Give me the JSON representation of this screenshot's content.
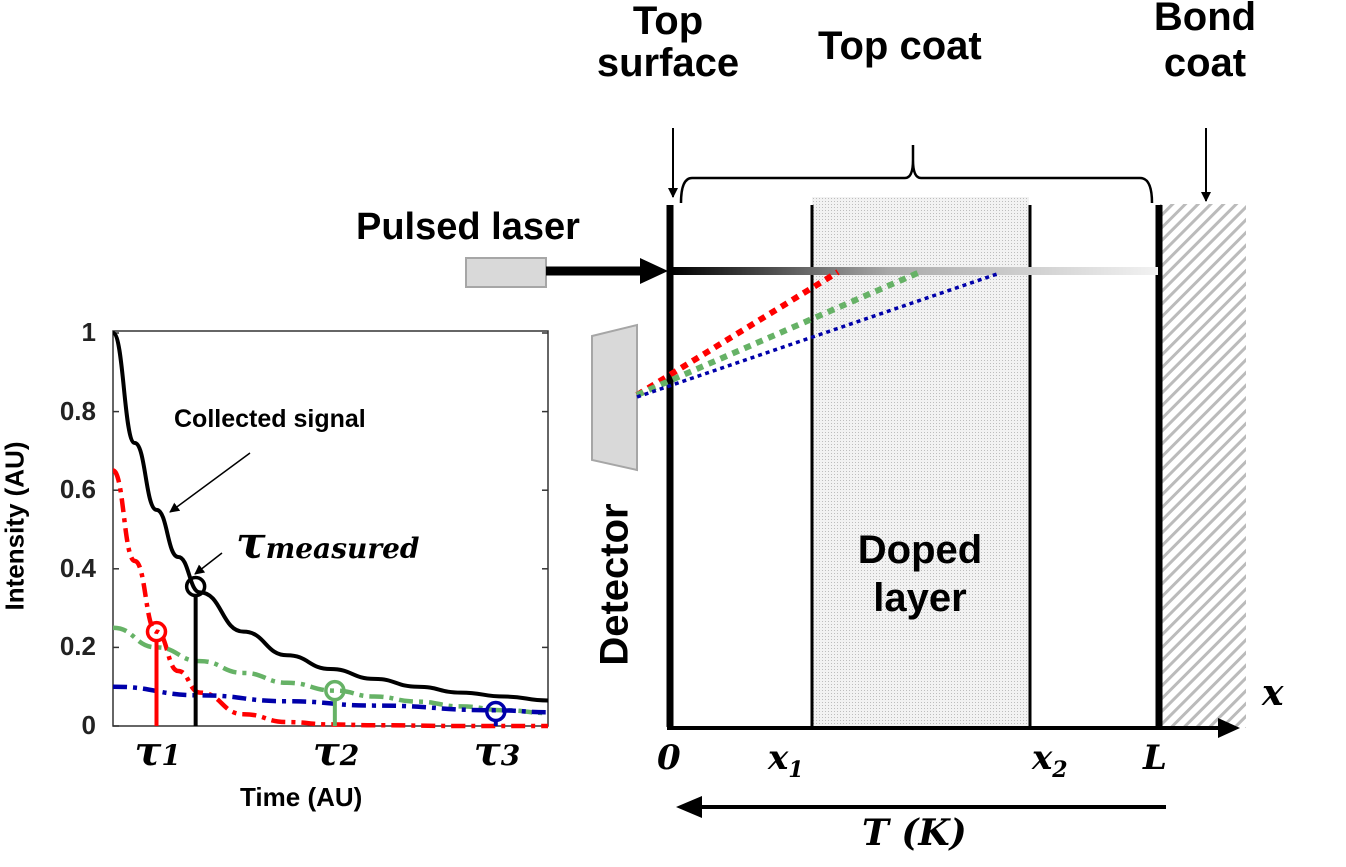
{
  "diagram": {
    "top_surface": "Top\nsurface",
    "top_surface_l1": "Top",
    "top_surface_l2": "surface",
    "top_coat": "Top coat",
    "bond_coat_l1": "Bond",
    "bond_coat_l2": "coat",
    "pulsed_laser": "Pulsed laser",
    "detector": "Detector",
    "doped_l1": "Doped",
    "doped_l2": "layer",
    "axis_x": "x",
    "tick_0": "0",
    "tick_x1": "x",
    "tick_x1_sub": "1",
    "tick_x2": "x",
    "tick_x2_sub": "2",
    "tick_L": "L",
    "temp_label": "T (K)",
    "colors": {
      "red": "#ff0000",
      "green": "#66b266",
      "blue": "#0000aa",
      "gray_fill": "#d9d9d9"
    }
  },
  "chart_data": {
    "type": "line",
    "xlabel": "Time (AU)",
    "ylabel": "Intensity (AU)",
    "ylim": [
      0,
      1
    ],
    "xlim": [
      0,
      1
    ],
    "yticks": [
      "0",
      "0.2",
      "0.4",
      "0.6",
      "0.8",
      "1"
    ],
    "ytick_values": [
      0,
      0.2,
      0.4,
      0.6,
      0.8,
      1
    ],
    "annotation_collected": "Collected signal",
    "annotation_tau": "τ",
    "annotation_tau_sub": "measured",
    "xtick_labels": [
      {
        "main": "τ",
        "sub": "1",
        "x": 0.1
      },
      {
        "main": "τ",
        "sub": "2",
        "x": 0.51
      },
      {
        "main": "τ",
        "sub": "3",
        "x": 0.88
      }
    ],
    "series": [
      {
        "name": "Collected signal",
        "color": "#000000",
        "style": "solid",
        "x": [
          0,
          0.05,
          0.1,
          0.15,
          0.2,
          0.3,
          0.4,
          0.5,
          0.6,
          0.7,
          0.8,
          0.9,
          1.0
        ],
        "y": [
          1.0,
          0.72,
          0.55,
          0.43,
          0.34,
          0.24,
          0.18,
          0.145,
          0.12,
          0.1,
          0.085,
          0.075,
          0.065
        ]
      },
      {
        "name": "tau1 decay",
        "color": "#ff0000",
        "style": "dashdot",
        "x": [
          0,
          0.05,
          0.1,
          0.15,
          0.2,
          0.3,
          0.4,
          0.5,
          0.6,
          0.8,
          1.0
        ],
        "y": [
          0.65,
          0.42,
          0.24,
          0.14,
          0.085,
          0.03,
          0.01,
          0.004,
          0.002,
          0.0,
          0.0
        ]
      },
      {
        "name": "tau2 decay",
        "color": "#66b266",
        "style": "dashdot",
        "x": [
          0,
          0.1,
          0.2,
          0.3,
          0.4,
          0.51,
          0.6,
          0.7,
          0.8,
          0.9,
          1.0
        ],
        "y": [
          0.25,
          0.2,
          0.165,
          0.135,
          0.11,
          0.09,
          0.075,
          0.062,
          0.05,
          0.04,
          0.033
        ]
      },
      {
        "name": "tau3 decay",
        "color": "#0000aa",
        "style": "dashdot",
        "x": [
          0,
          0.2,
          0.4,
          0.6,
          0.88,
          1.0
        ],
        "y": [
          0.1,
          0.078,
          0.063,
          0.052,
          0.04,
          0.035
        ]
      }
    ],
    "markers": [
      {
        "name": "tau1",
        "x": 0.1,
        "y": 0.24,
        "color": "#ff0000"
      },
      {
        "name": "tau-measured",
        "x": 0.19,
        "y": 0.355,
        "color": "#000000"
      },
      {
        "name": "tau2",
        "x": 0.51,
        "y": 0.09,
        "color": "#66b266"
      },
      {
        "name": "tau3",
        "x": 0.88,
        "y": 0.037,
        "color": "#0000aa"
      }
    ]
  }
}
